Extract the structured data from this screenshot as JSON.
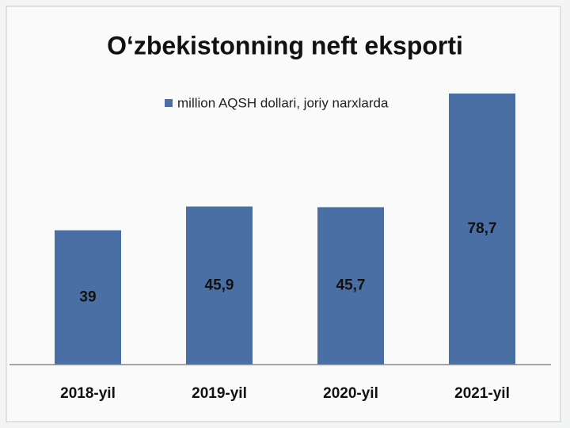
{
  "chart_data": {
    "type": "bar",
    "title": "O‘zbekistonning neft eksporti",
    "categories": [
      "2018-yil",
      "2019-yil",
      "2020-yil",
      "2021-yil"
    ],
    "series": [
      {
        "name": "million AQSH dollari, joriy narxlarda",
        "color": "#4a6fa5",
        "values": [
          39,
          45.9,
          45.7,
          78.7
        ],
        "value_labels": [
          "39",
          "45,9",
          "45,7",
          "78,7"
        ]
      }
    ]
  }
}
